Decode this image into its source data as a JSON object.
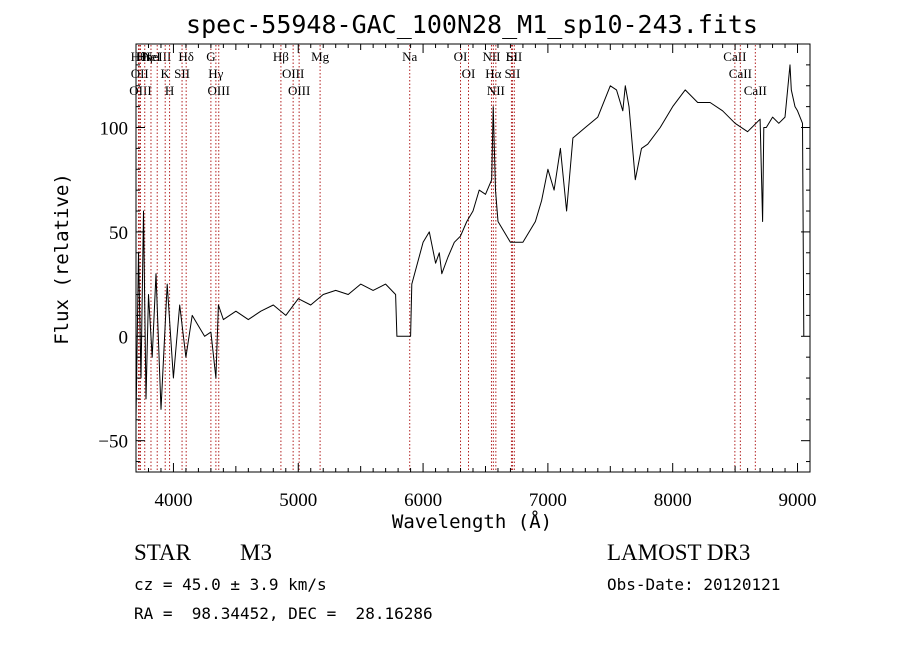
{
  "chart_data": {
    "type": "line",
    "title": "spec-55948-GAC_100N28_M1_sp10-243.fits",
    "xlabel": "Wavelength (Å)",
    "ylabel": "Flux (relative)",
    "xlim": [
      3700,
      9100
    ],
    "ylim": [
      -65,
      140
    ],
    "xticks": [
      4000,
      5000,
      6000,
      7000,
      8000,
      9000
    ],
    "xtick_labels": [
      "4000",
      "5000",
      "6000",
      "7000",
      "8000",
      "9000"
    ],
    "yticks": [
      -50,
      0,
      50,
      100
    ],
    "ytick_labels": [
      "−50",
      "0",
      "50",
      "100"
    ],
    "series": [
      {
        "name": "flux",
        "x": [
          3700,
          3720,
          3740,
          3760,
          3780,
          3800,
          3830,
          3860,
          3900,
          3950,
          4000,
          4050,
          4100,
          4150,
          4200,
          4250,
          4300,
          4340,
          4360,
          4400,
          4500,
          4600,
          4700,
          4800,
          4900,
          5000,
          5100,
          5200,
          5300,
          5400,
          5500,
          5600,
          5700,
          5780,
          5790,
          5900,
          5910,
          6000,
          6050,
          6100,
          6130,
          6150,
          6200,
          6250,
          6300,
          6350,
          6400,
          6450,
          6500,
          6550,
          6562,
          6580,
          6600,
          6650,
          6700,
          6800,
          6900,
          6950,
          7000,
          7050,
          7100,
          7150,
          7200,
          7300,
          7400,
          7500,
          7550,
          7600,
          7620,
          7650,
          7700,
          7750,
          7800,
          7900,
          8000,
          8100,
          8200,
          8300,
          8400,
          8500,
          8600,
          8700,
          8720,
          8730,
          8750,
          8800,
          8850,
          8900,
          8940,
          8950,
          8980,
          9000,
          9040,
          9050
        ],
        "y": [
          -40,
          40,
          -20,
          60,
          -30,
          20,
          -10,
          30,
          -35,
          25,
          -20,
          15,
          -10,
          10,
          5,
          0,
          2,
          -20,
          15,
          8,
          12,
          8,
          12,
          15,
          10,
          18,
          15,
          20,
          22,
          20,
          25,
          22,
          25,
          20,
          0,
          0,
          25,
          45,
          50,
          35,
          40,
          30,
          38,
          45,
          48,
          55,
          60,
          70,
          68,
          75,
          110,
          70,
          55,
          50,
          45,
          45,
          55,
          65,
          80,
          70,
          90,
          60,
          95,
          100,
          105,
          120,
          118,
          108,
          120,
          110,
          75,
          90,
          92,
          100,
          110,
          118,
          112,
          112,
          108,
          102,
          98,
          104,
          55,
          100,
          100,
          105,
          102,
          105,
          130,
          118,
          110,
          108,
          102,
          0
        ]
      }
    ],
    "lines": [
      {
        "wave": 3720,
        "label": "Hθ"
      },
      {
        "wave": 3730,
        "label": "OII"
      },
      {
        "wave": 3736,
        "label": "OIII"
      },
      {
        "wave": 3770,
        "label": "Hη"
      },
      {
        "wave": 3820,
        "label": "HeI"
      },
      {
        "wave": 3870,
        "label": "NeIII"
      },
      {
        "wave": 3934,
        "label": "K"
      },
      {
        "wave": 3969,
        "label": "H"
      },
      {
        "wave": 4069,
        "label": "SII"
      },
      {
        "wave": 4102,
        "label": "Hδ"
      },
      {
        "wave": 4300,
        "label": "G"
      },
      {
        "wave": 4340,
        "label": "Hγ"
      },
      {
        "wave": 4363,
        "label": "OIII"
      },
      {
        "wave": 4861,
        "label": "Hβ"
      },
      {
        "wave": 4959,
        "label": "OIII"
      },
      {
        "wave": 5007,
        "label": "OIII"
      },
      {
        "wave": 5175,
        "label": "Mg"
      },
      {
        "wave": 5893,
        "label": "Na"
      },
      {
        "wave": 6300,
        "label": "OI"
      },
      {
        "wave": 6364,
        "label": "OI"
      },
      {
        "wave": 6548,
        "label": "NII"
      },
      {
        "wave": 6563,
        "label": "Hα"
      },
      {
        "wave": 6583,
        "label": "NII"
      },
      {
        "wave": 6708,
        "label": "Li"
      },
      {
        "wave": 6716,
        "label": "SII"
      },
      {
        "wave": 6731,
        "label": "SII"
      },
      {
        "wave": 8498,
        "label": "CaII"
      },
      {
        "wave": 8542,
        "label": "CaII"
      },
      {
        "wave": 8662,
        "label": "CaII"
      }
    ],
    "line_color": "#000000",
    "marker_color": "#b22222",
    "grid": false
  },
  "info": {
    "object_class": "STAR",
    "subclass": "M3",
    "survey": "LAMOST DR3",
    "redshift": "cz = 45.0 ± 3.9 km/s",
    "obs_date": "Obs-Date: 20120121",
    "coords": "RA =  98.34452, DEC =  28.16286"
  }
}
